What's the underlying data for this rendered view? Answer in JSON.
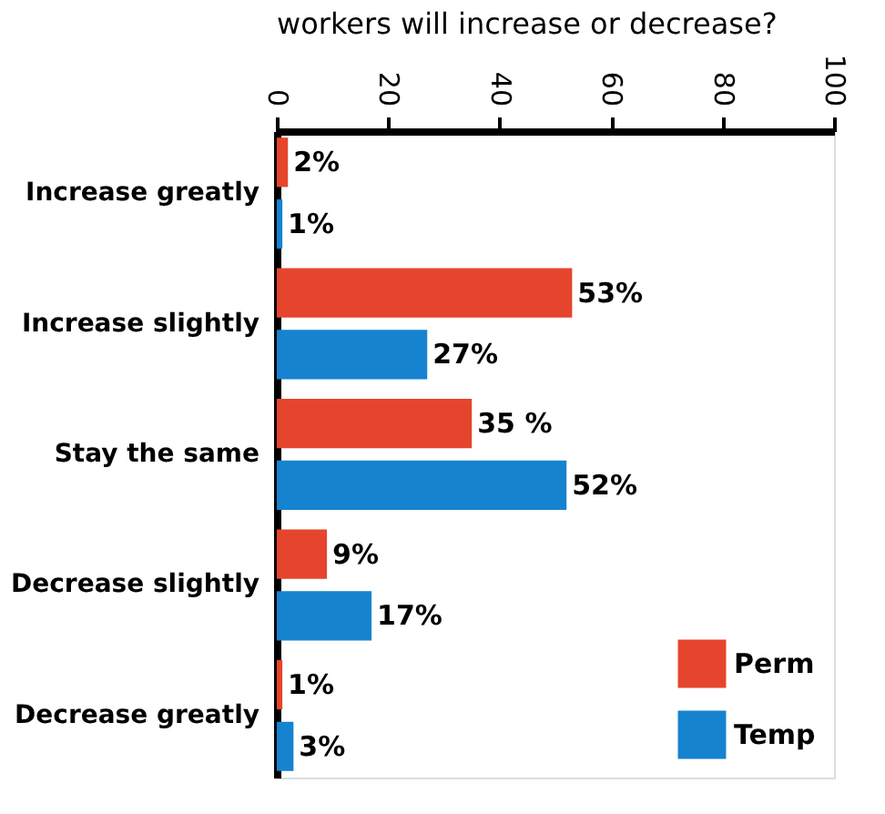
{
  "chart_data": {
    "type": "bar",
    "orientation": "horizontal",
    "title": "workers will increase or decrease?",
    "categories": [
      "Increase greatly",
      "Increase slightly",
      "Stay the same",
      "Decrease slightly",
      "Decrease greatly"
    ],
    "series": [
      {
        "name": "Perm",
        "color": "#e5452c",
        "values": [
          2,
          53,
          35,
          9,
          1
        ],
        "value_labels": [
          "2%",
          "53%",
          "35 %",
          "9%",
          "1%"
        ]
      },
      {
        "name": "Temp",
        "color": "#1583d0",
        "values": [
          1,
          27,
          52,
          17,
          3
        ],
        "value_labels": [
          "1%",
          "27%",
          "52%",
          "17%",
          "3%"
        ]
      }
    ],
    "xlim": [
      0,
      100
    ],
    "xticks": [
      0,
      20,
      40,
      60,
      80,
      100
    ],
    "grid": false,
    "legend": "bottom right"
  }
}
